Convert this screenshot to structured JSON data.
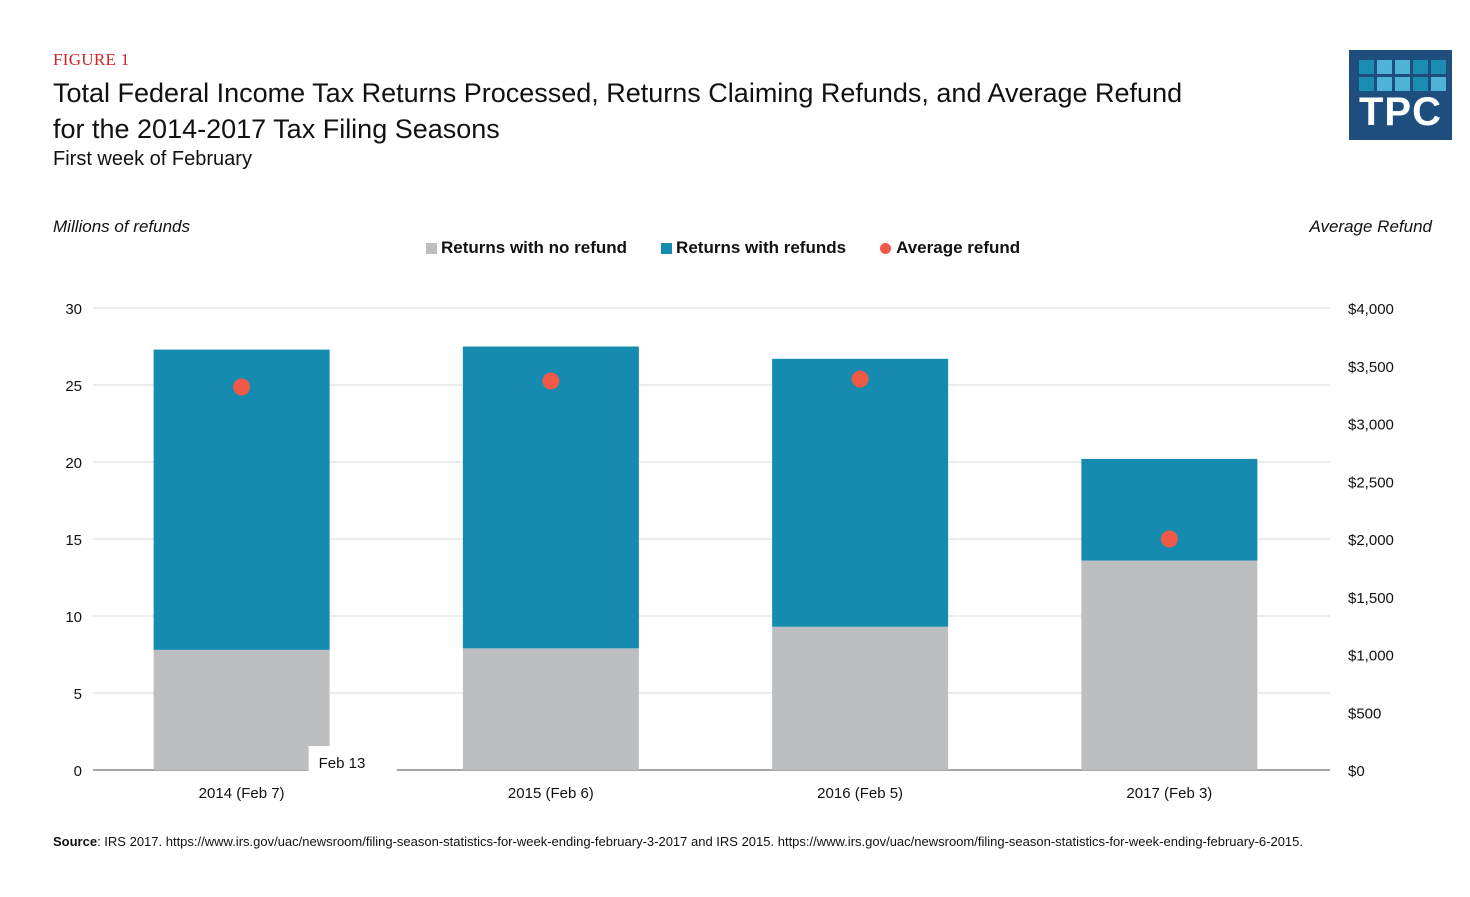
{
  "header": {
    "figure_label": "FIGURE 1",
    "title_line1": "Total Federal Income Tax Returns Processed, Returns Claiming Refunds, and Average Refund",
    "title_line2": "for the 2014-2017 Tax Filing Seasons",
    "subtitle": "First week of February"
  },
  "logo": {
    "text": "TPC",
    "background": "#1d4e7e",
    "tile_colors": [
      "#1b8db3",
      "#4fb3d6",
      "#4fb3d6",
      "#1b8db3",
      "#1b8db3",
      "#1b8db3",
      "#4fb3d6",
      "#4fb3d6",
      "#1b8db3",
      "#4fb3d6"
    ]
  },
  "source": {
    "label": "Source",
    "text": ": IRS 2017.  https://www.irs.gov/uac/newsroom/filing-season-statistics-for-week-ending-february-3-2017 and IRS 2015. https://www.irs.gov/uac/newsroom/filing-season-statistics-for-week-ending-february-6-2015."
  },
  "chart_data": {
    "type": "bar",
    "stacked": true,
    "title": "Total Federal Income Tax Returns Processed, Returns Claiming Refunds, and Average Refund for the 2014-2017 Tax Filing Seasons",
    "subtitle": "First week of February",
    "ylabel": "Millions of refunds",
    "y2label": "Average Refund",
    "xlabel": "",
    "categories": [
      "2014 (Feb 7)",
      "2015 (Feb 6)",
      "2016 (Feb 5)",
      "2017 (Feb 3)"
    ],
    "series": [
      {
        "name": "Returns with no refund",
        "type": "bar",
        "axis": "left",
        "color": "#bdbec0",
        "values": [
          7.8,
          7.9,
          9.3,
          13.6
        ]
      },
      {
        "name": "Returns with refunds",
        "type": "bar",
        "axis": "left",
        "color": "#168bb0",
        "values": [
          19.5,
          19.6,
          17.4,
          6.6
        ]
      },
      {
        "name": "Average refund",
        "type": "scatter",
        "axis": "right",
        "color": "#ee5a45",
        "values": [
          3316,
          3368,
          3385,
          2000
        ]
      }
    ],
    "ylim": [
      0,
      30
    ],
    "yticks": [
      0,
      5,
      10,
      15,
      20,
      25,
      30
    ],
    "y2lim": [
      0,
      4000
    ],
    "y2ticks": [
      0,
      500,
      1000,
      1500,
      2000,
      2500,
      3000,
      3500,
      4000
    ],
    "y2tick_labels": [
      "$0",
      "$500",
      "$1,000",
      "$1,500",
      "$2,000",
      "$2,500",
      "$3,000",
      "$3,500",
      "$4,000"
    ],
    "grid": true,
    "legend": "top-center",
    "annotations": [
      {
        "text": "Feb 13",
        "category": "2014 (Feb 7)"
      }
    ]
  }
}
